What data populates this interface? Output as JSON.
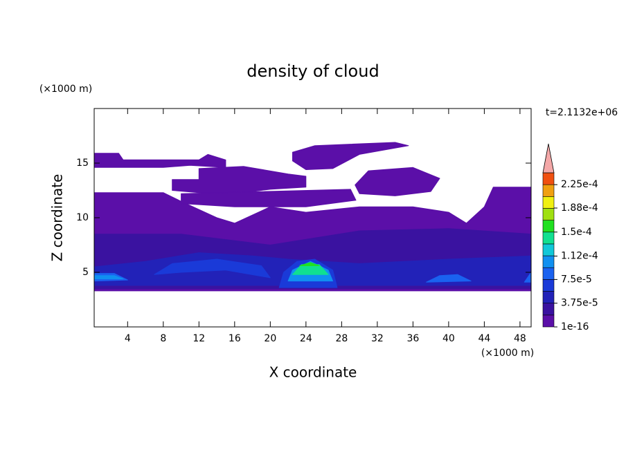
{
  "chart_data": {
    "type": "contour",
    "title": "density of cloud",
    "x_label": "X coordinate",
    "y_label": "Z coordinate",
    "x_unit": "(×1000 m)",
    "y_unit": "(×1000 m)",
    "annotation": "t=2.1132e+06",
    "xlim": [
      0.25,
      49.25
    ],
    "ylim": [
      0,
      20
    ],
    "xticks": [
      4,
      8,
      12,
      16,
      20,
      24,
      28,
      32,
      36,
      40,
      44,
      48
    ],
    "yticks": [
      5,
      10,
      15
    ],
    "colorbar": {
      "range": [
        1e-16,
        0.00024375
      ],
      "colors": [
        "#5b0fa8",
        "#3a12a0",
        "#2222b8",
        "#1a3ad8",
        "#1a62f0",
        "#1090f0",
        "#10c8d8",
        "#10e090",
        "#20e020",
        "#a0e010",
        "#f0f010",
        "#f0a010",
        "#f05010"
      ],
      "extend_color": "#f4a8a8",
      "ticks": [
        {
          "value": 1e-16,
          "label": "1e-16"
        },
        {
          "value": 3.75e-05,
          "label": "3.75e-5"
        },
        {
          "value": 7.5e-05,
          "label": "7.5e-5"
        },
        {
          "value": 0.000112,
          "label": "1.12e-4"
        },
        {
          "value": 0.00015,
          "label": "1.5e-4"
        },
        {
          "value": 0.000188,
          "label": "1.88e-4"
        },
        {
          "value": 0.000225,
          "label": "2.25e-4"
        }
      ]
    },
    "contours": [
      {
        "level": 0,
        "x": [
          0.25,
          49.25,
          49.25,
          45,
          44,
          42,
          40,
          36,
          30,
          24,
          20,
          16,
          14,
          10,
          8,
          0.25
        ],
        "z": [
          3.3,
          3.3,
          12.8,
          12.8,
          11,
          9.5,
          10.5,
          11,
          11,
          10.5,
          11,
          9.5,
          10,
          11.5,
          12.3,
          12.3
        ]
      },
      {
        "level": 0,
        "x": [
          0.25,
          0.25,
          3,
          3.5,
          12,
          13,
          15,
          15,
          11,
          8
        ],
        "z": [
          14.6,
          15.9,
          15.9,
          15.3,
          15.3,
          15.8,
          15.3,
          14.6,
          14.8,
          14.6
        ]
      },
      {
        "level": 0,
        "x": [
          9,
          9,
          12,
          12,
          17,
          22,
          24,
          24,
          20,
          17,
          12
        ],
        "z": [
          12.5,
          13.5,
          13.5,
          14.5,
          14.7,
          14,
          13.8,
          12.8,
          12.6,
          12.3,
          12.3
        ]
      },
      {
        "level": 0,
        "x": [
          22.5,
          25,
          34,
          35.5,
          30,
          27,
          24,
          22.5
        ],
        "z": [
          16,
          16.6,
          16.9,
          16.6,
          15.8,
          14.5,
          14.4,
          15.2
        ]
      },
      {
        "level": 0,
        "x": [
          29.5,
          31,
          36,
          39,
          38,
          34,
          30
        ],
        "z": [
          13,
          14.3,
          14.6,
          13.6,
          12.4,
          12,
          12.2
        ]
      },
      {
        "level": 0,
        "x": [
          10,
          10,
          29,
          29.6,
          24,
          16
        ],
        "z": [
          11.3,
          12.2,
          12.6,
          11.6,
          11,
          11
        ]
      },
      {
        "level": 1,
        "x": [
          0.25,
          0.25,
          10,
          20,
          30,
          40,
          49.25,
          49.25
        ],
        "z": [
          3.5,
          8.5,
          8.5,
          7.5,
          8.8,
          9,
          8.5,
          3.5
        ]
      },
      {
        "level": 2,
        "x": [
          0.25,
          0.25,
          6,
          12,
          18,
          22,
          30,
          40,
          49.25,
          49.25
        ],
        "z": [
          3.8,
          5.5,
          6,
          6.8,
          6.5,
          6.2,
          5.8,
          6.2,
          6.5,
          3.8
        ]
      },
      {
        "level": 3,
        "x": [
          7,
          9,
          14,
          19,
          20,
          15,
          10
        ],
        "z": [
          4.8,
          5.8,
          6.2,
          5.6,
          4.5,
          5.2,
          5
        ]
      },
      {
        "level": 3,
        "x": [
          21,
          21.5,
          23,
          25,
          27,
          27.5
        ],
        "z": [
          3.6,
          5,
          6,
          6.2,
          5.2,
          3.6
        ]
      },
      {
        "level": 4,
        "x": [
          0.25,
          0.25,
          2.5,
          4
        ],
        "z": [
          4.2,
          4.9,
          4.9,
          4.3
        ]
      },
      {
        "level": 4,
        "x": [
          37.5,
          39,
          41,
          42.5
        ],
        "z": [
          4.1,
          4.7,
          4.8,
          4.2
        ]
      },
      {
        "level": 4,
        "x": [
          48.5,
          49.25,
          49.25
        ],
        "z": [
          4.1,
          5,
          4.1
        ]
      },
      {
        "level": 5,
        "x": [
          0.25,
          0.25,
          2.5,
          3.5
        ],
        "z": [
          4.4,
          4.7,
          4.7,
          4.4
        ]
      },
      {
        "level": 5,
        "x": [
          22,
          22.5,
          24.5,
          26.5,
          27
        ],
        "z": [
          4.2,
          5.2,
          6,
          5.2,
          4.2
        ]
      },
      {
        "level": 7,
        "x": [
          22.5,
          23.5,
          25.5,
          26.5
        ],
        "z": [
          4.8,
          5.7,
          5.7,
          4.8
        ]
      },
      {
        "level": 8,
        "x": [
          23.3,
          24.5,
          25.5
        ],
        "z": [
          5.6,
          5.9,
          5.6
        ]
      }
    ]
  }
}
